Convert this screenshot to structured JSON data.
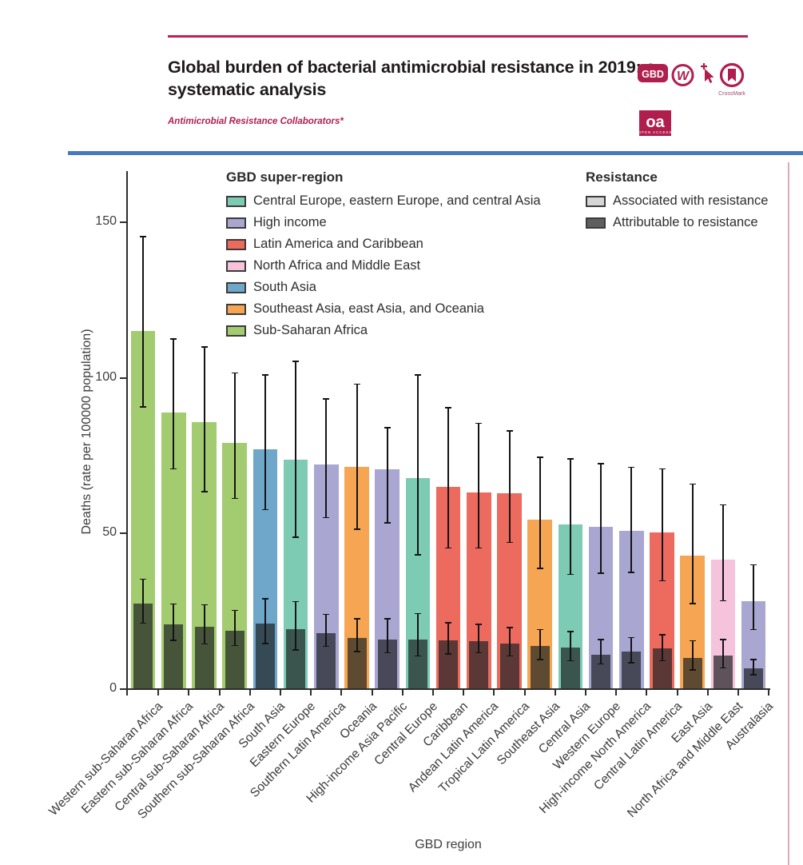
{
  "header": {
    "title": "Global burden of bacterial antimicrobial resistance in 2019: a systematic analysis",
    "authors": "Antimicrobial Resistance Collaborators*",
    "accent_color": "#b01e4e",
    "badges": {
      "gbd_label": "GBD",
      "crossmark_label": "CrossMark",
      "oa_label": "oa",
      "oa_sublabel": "OPEN ACCESS"
    }
  },
  "chart_data": {
    "type": "bar",
    "title": "",
    "xlabel": "GBD region",
    "ylabel": "Deaths (rate per 100000 population)",
    "ylim": [
      0,
      166
    ],
    "yticks": [
      0,
      50,
      100,
      150
    ],
    "grid": false,
    "legend_title": "GBD super-region",
    "legend_position": "top-inside",
    "super_regions": [
      {
        "name": "Central Europe, eastern Europe, and central Asia",
        "color": "#7ecbb3"
      },
      {
        "name": "High income",
        "color": "#a9a6d2"
      },
      {
        "name": "Latin America and Caribbean",
        "color": "#ec6b5e"
      },
      {
        "name": "North Africa and Middle East",
        "color": "#f6c3dc"
      },
      {
        "name": "South Asia",
        "color": "#6fa7cb"
      },
      {
        "name": "Southeast Asia, east Asia, and Oceania",
        "color": "#f6a653"
      },
      {
        "name": "Sub-Saharan Africa",
        "color": "#a3cb70"
      }
    ],
    "resistance_legend": {
      "title": "Resistance",
      "items": [
        {
          "label": "Associated with resistance",
          "swatch": "#d6d6d6"
        },
        {
          "label": "Attributable to resistance",
          "swatch": "#5f5f5f"
        }
      ]
    },
    "bars": [
      {
        "region": "Western sub-Saharan Africa",
        "super_region": "Sub-Saharan Africa",
        "associated": 114.8,
        "associated_ci": [
          90.4,
          145.3
        ],
        "attributable": 27.3,
        "attributable_ci": [
          20.9,
          35.3
        ]
      },
      {
        "region": "Eastern sub-Saharan Africa",
        "super_region": "Sub-Saharan Africa",
        "associated": 88.5,
        "associated_ci": [
          70.5,
          112.5
        ],
        "attributable": 20.6,
        "attributable_ci": [
          15.3,
          27.3
        ]
      },
      {
        "region": "Central sub-Saharan Africa",
        "super_region": "Sub-Saharan Africa",
        "associated": 85.6,
        "associated_ci": [
          63.2,
          109.9
        ],
        "attributable": 19.9,
        "attributable_ci": [
          14.2,
          27.0
        ]
      },
      {
        "region": "Southern sub-Saharan Africa",
        "super_region": "Sub-Saharan Africa",
        "associated": 78.9,
        "associated_ci": [
          60.9,
          101.5
        ],
        "attributable": 18.5,
        "attributable_ci": [
          13.7,
          25.2
        ]
      },
      {
        "region": "South Asia",
        "super_region": "South Asia",
        "associated": 76.8,
        "associated_ci": [
          57.4,
          100.9
        ],
        "attributable": 20.8,
        "attributable_ci": [
          14.4,
          29.0
        ]
      },
      {
        "region": "Eastern Europe",
        "super_region": "Central Europe, eastern Europe, and central Asia",
        "associated": 73.5,
        "associated_ci": [
          48.5,
          105.3
        ],
        "attributable": 19.1,
        "attributable_ci": [
          12.3,
          28.1
        ]
      },
      {
        "region": "Southern Latin America",
        "super_region": "High income",
        "associated": 71.9,
        "associated_ci": [
          54.8,
          93.2
        ],
        "attributable": 17.6,
        "attributable_ci": [
          13.4,
          24.0
        ]
      },
      {
        "region": "Oceania",
        "super_region": "Southeast Asia, east Asia, and Oceania",
        "associated": 71.2,
        "associated_ci": [
          51.0,
          97.9
        ],
        "attributable": 16.3,
        "attributable_ci": [
          11.8,
          22.5
        ]
      },
      {
        "region": "High-income Asia Pacific",
        "super_region": "High income",
        "associated": 70.5,
        "associated_ci": [
          53.1,
          84.0
        ],
        "attributable": 15.6,
        "attributable_ci": [
          11.4,
          22.5
        ]
      },
      {
        "region": "Central Europe",
        "super_region": "Central Europe, eastern Europe, and central Asia",
        "associated": 67.6,
        "associated_ci": [
          42.8,
          100.9
        ],
        "attributable": 15.7,
        "attributable_ci": [
          10.3,
          24.2
        ]
      },
      {
        "region": "Caribbean",
        "super_region": "Latin America and Caribbean",
        "associated": 64.7,
        "associated_ci": [
          45.0,
          90.3
        ],
        "attributable": 15.5,
        "attributable_ci": [
          11.0,
          21.2
        ]
      },
      {
        "region": "Andean Latin America",
        "super_region": "Latin America and Caribbean",
        "associated": 62.9,
        "associated_ci": [
          45.0,
          85.3
        ],
        "attributable": 15.1,
        "attributable_ci": [
          11.4,
          20.8
        ]
      },
      {
        "region": "Tropical Latin America",
        "super_region": "Latin America and Caribbean",
        "associated": 62.7,
        "associated_ci": [
          46.8,
          82.9
        ],
        "attributable": 14.4,
        "attributable_ci": [
          10.4,
          19.8
        ]
      },
      {
        "region": "Southeast Asia",
        "super_region": "Southeast Asia, east Asia, and Oceania",
        "associated": 54.2,
        "associated_ci": [
          38.5,
          74.4
        ],
        "attributable": 13.6,
        "attributable_ci": [
          9.2,
          19.1
        ]
      },
      {
        "region": "Central Asia",
        "super_region": "Central Europe, eastern Europe, and central Asia",
        "associated": 52.7,
        "associated_ci": [
          36.6,
          73.9
        ],
        "attributable": 13.2,
        "attributable_ci": [
          8.8,
          18.4
        ]
      },
      {
        "region": "Western Europe",
        "super_region": "High income",
        "associated": 51.9,
        "associated_ci": [
          36.9,
          72.4
        ],
        "attributable": 10.9,
        "attributable_ci": [
          7.8,
          15.8
        ]
      },
      {
        "region": "High-income North America",
        "super_region": "High income",
        "associated": 50.5,
        "associated_ci": [
          37.2,
          71.2
        ],
        "attributable": 11.7,
        "attributable_ci": [
          8.1,
          16.5
        ]
      },
      {
        "region": "Central Latin America",
        "super_region": "Latin America and Caribbean",
        "associated": 50.1,
        "associated_ci": [
          34.5,
          70.7
        ],
        "attributable": 12.8,
        "attributable_ci": [
          8.8,
          17.4
        ]
      },
      {
        "region": "East Asia",
        "super_region": "Southeast Asia, east Asia, and Oceania",
        "associated": 42.6,
        "associated_ci": [
          27.1,
          65.8
        ],
        "attributable": 9.7,
        "attributable_ci": [
          5.8,
          15.5
        ]
      },
      {
        "region": "North Africa and Middle East",
        "super_region": "North Africa and Middle East",
        "associated": 41.4,
        "associated_ci": [
          28.1,
          59.1
        ],
        "attributable": 10.5,
        "attributable_ci": [
          6.5,
          15.9
        ]
      },
      {
        "region": "Australasia",
        "super_region": "High income",
        "associated": 28.0,
        "associated_ci": [
          18.8,
          39.9
        ],
        "attributable": 6.5,
        "attributable_ci": [
          4.3,
          9.4
        ]
      }
    ]
  }
}
